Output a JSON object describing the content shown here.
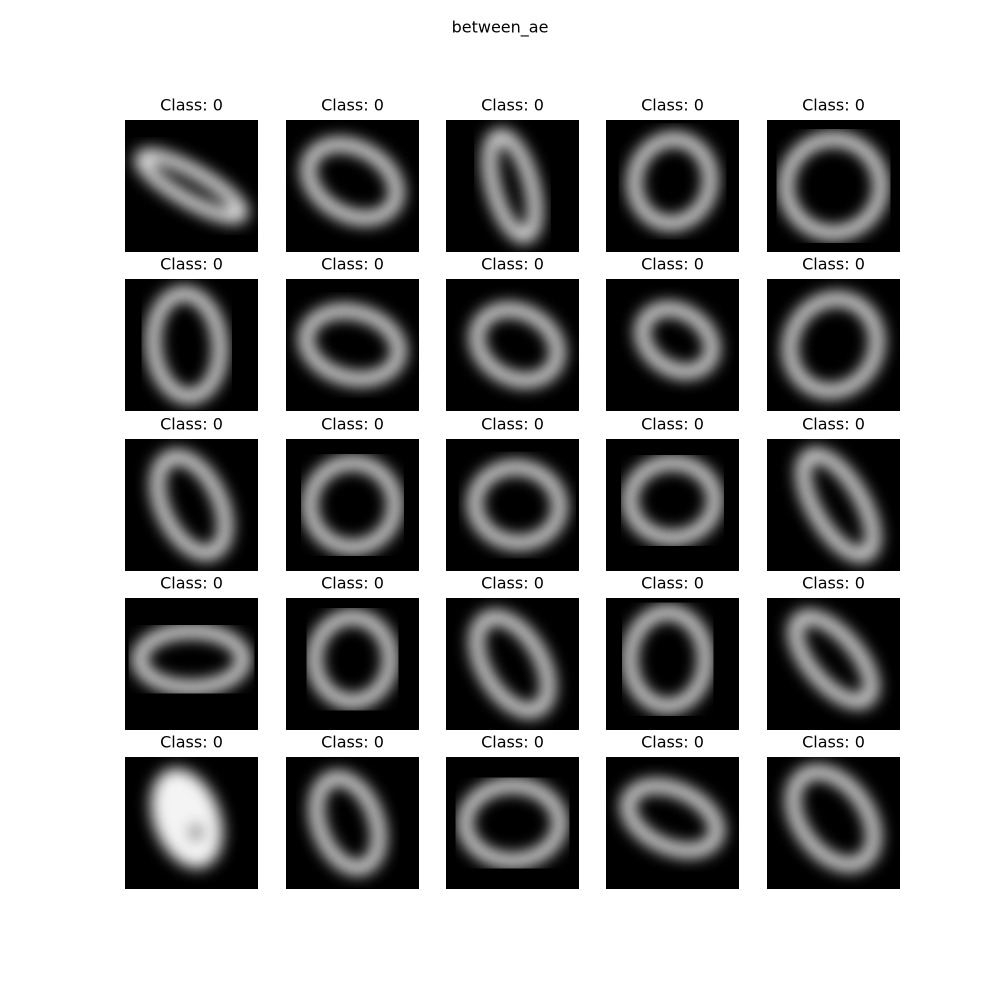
{
  "title": "between_ae",
  "panels": [
    {
      "title": "Class: 0"
    },
    {
      "title": "Class: 0"
    },
    {
      "title": "Class: 0"
    },
    {
      "title": "Class: 0"
    },
    {
      "title": "Class: 0"
    },
    {
      "title": "Class: 0"
    },
    {
      "title": "Class: 0"
    },
    {
      "title": "Class: 0"
    },
    {
      "title": "Class: 0"
    },
    {
      "title": "Class: 0"
    },
    {
      "title": "Class: 0"
    },
    {
      "title": "Class: 0"
    },
    {
      "title": "Class: 0"
    },
    {
      "title": "Class: 0"
    },
    {
      "title": "Class: 0"
    },
    {
      "title": "Class: 0"
    },
    {
      "title": "Class: 0"
    },
    {
      "title": "Class: 0"
    },
    {
      "title": "Class: 0"
    },
    {
      "title": "Class: 0"
    },
    {
      "title": "Class: 0"
    },
    {
      "title": "Class: 0"
    },
    {
      "title": "Class: 0"
    },
    {
      "title": "Class: 0"
    },
    {
      "title": "Class: 0"
    }
  ]
}
